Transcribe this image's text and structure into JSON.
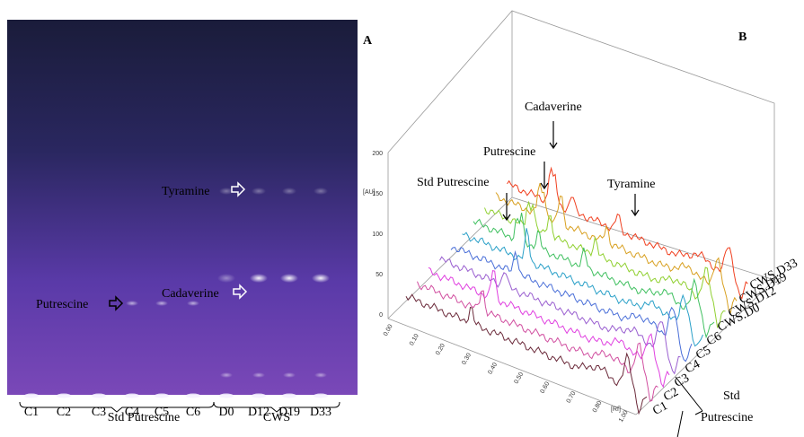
{
  "panel_a": {
    "lanes": [
      "C1",
      "C2",
      "C3",
      "C4",
      "C5",
      "C6",
      "D0",
      "D12",
      "D19",
      "D33"
    ],
    "groups": [
      "Std Putrescine",
      "CWS"
    ],
    "annotations": {
      "tyramine": "Tyramine",
      "cadaverine": "Cadaverine",
      "putrescine": "Putrescine"
    }
  },
  "panel_b": {
    "label_a": "A",
    "label_b": "B",
    "annotations": {
      "cadaverine": "Cadaverine",
      "putrescine": "Putrescine",
      "std_putrescine": "Std Putrescine",
      "tyramine": "Tyramine"
    },
    "au_axis": {
      "label": "[AU]",
      "ticks": [
        "0",
        "50",
        "100",
        "150",
        "200"
      ]
    },
    "rf_axis": {
      "label": "[Rf]",
      "ticks": [
        "0.00",
        "0.10",
        "0.20",
        "0.30",
        "0.40",
        "0.50",
        "0.60",
        "0.70",
        "0.80",
        "1.00"
      ]
    },
    "side_tick": "200",
    "tracks": [
      "CWS.D33",
      "CWS.D19",
      "CWS.D12",
      "CWS.D0",
      "C6",
      "C5",
      "C4",
      "C3",
      "C2",
      "C1"
    ],
    "group": [
      "Std",
      "Putrescine"
    ]
  }
}
